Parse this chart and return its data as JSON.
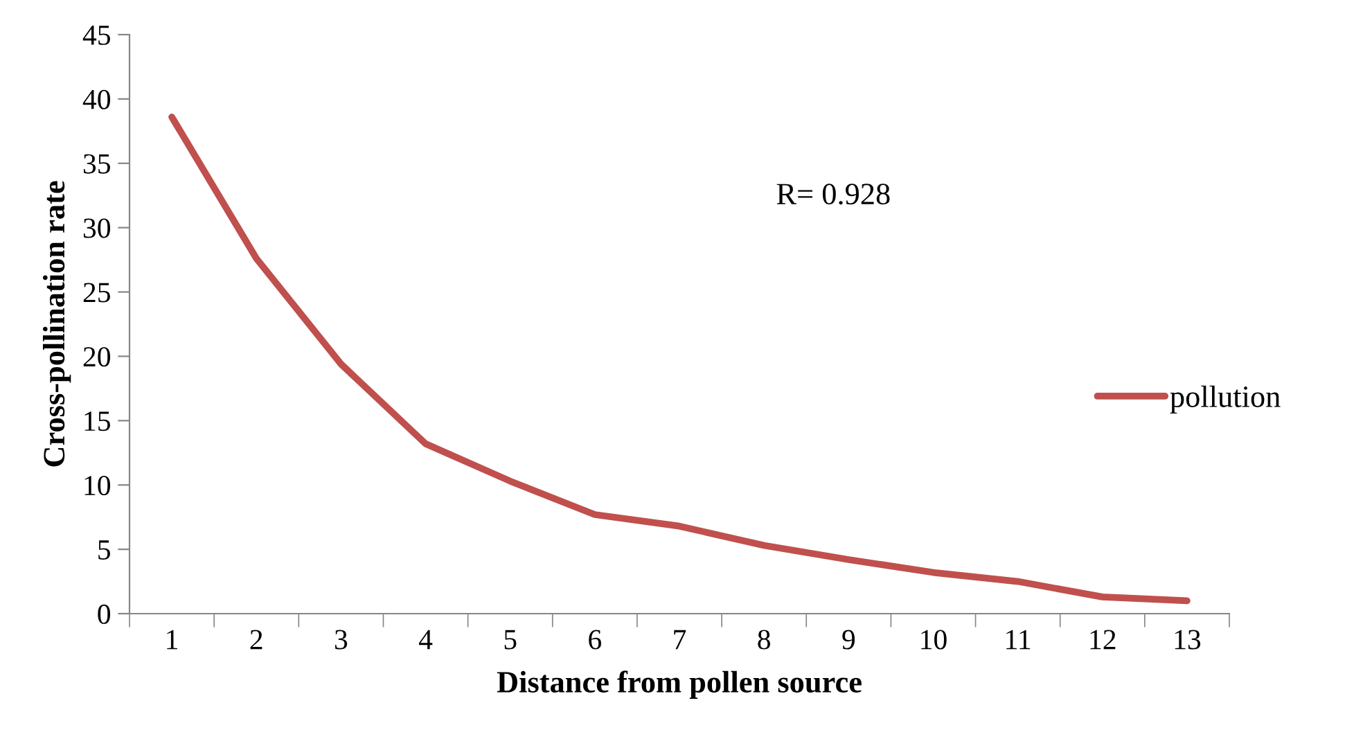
{
  "chart_data": {
    "type": "line",
    "xlabel": "Distance from pollen source",
    "ylabel": "Cross-pollination rate",
    "categories": [
      "1",
      "2",
      "3",
      "4",
      "5",
      "6",
      "7",
      "8",
      "9",
      "10",
      "11",
      "12",
      "13"
    ],
    "series": [
      {
        "name": "pollution",
        "color": "#c0504d",
        "values": [
          38.6,
          27.6,
          19.4,
          13.2,
          10.3,
          7.7,
          6.8,
          5.3,
          4.2,
          3.2,
          2.5,
          1.3,
          1.0
        ]
      }
    ],
    "ylim": [
      0,
      45
    ],
    "yticks": [
      0,
      5,
      10,
      15,
      20,
      25,
      30,
      35,
      40,
      45
    ],
    "annotations": [
      "R= 0.928"
    ],
    "legend": "right",
    "grid": false,
    "marker": "none",
    "line_style": "solid"
  }
}
